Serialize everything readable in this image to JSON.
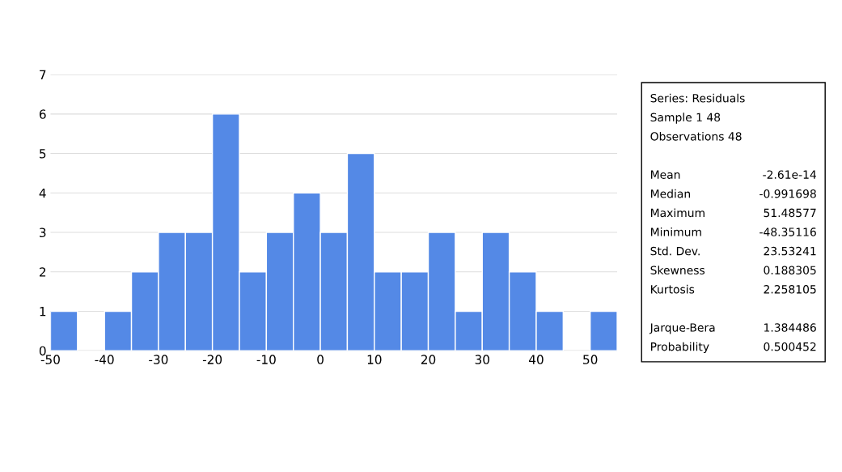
{
  "chart_data": {
    "type": "histogram",
    "bins": [
      -50,
      -45,
      -40,
      -35,
      -30,
      -25,
      -20,
      -15,
      -10,
      -5,
      0,
      5,
      10,
      15,
      20,
      25,
      30,
      35,
      40,
      45,
      50,
      55
    ],
    "values": [
      1,
      0,
      1,
      2,
      3,
      3,
      6,
      2,
      3,
      4,
      3,
      5,
      2,
      2,
      3,
      1,
      3,
      2,
      1,
      0,
      1
    ],
    "color": "#5489e6",
    "xlim": [
      -50,
      55
    ],
    "xticks": [
      -50,
      -40,
      -30,
      -20,
      -10,
      0,
      10,
      20,
      30,
      40,
      50
    ],
    "ylim": [
      0,
      7
    ],
    "yticks": [
      0,
      1,
      2,
      3,
      4,
      5,
      6,
      7
    ],
    "grid": "y",
    "annotations": [
      "Series: Residuals",
      "Sample 1 48",
      "Observations 48",
      "Mean",
      "-2.61e-14",
      "Median",
      "-0.991698",
      "Maximum",
      "51.48577",
      "Minimum",
      "-48.35116",
      "Std. Dev.",
      "23.53241",
      "Skewness",
      "0.188305",
      "Kurtosis",
      "2.258105",
      "Jarque-Bera",
      "1.384486",
      "Probability",
      "0.500452"
    ]
  }
}
